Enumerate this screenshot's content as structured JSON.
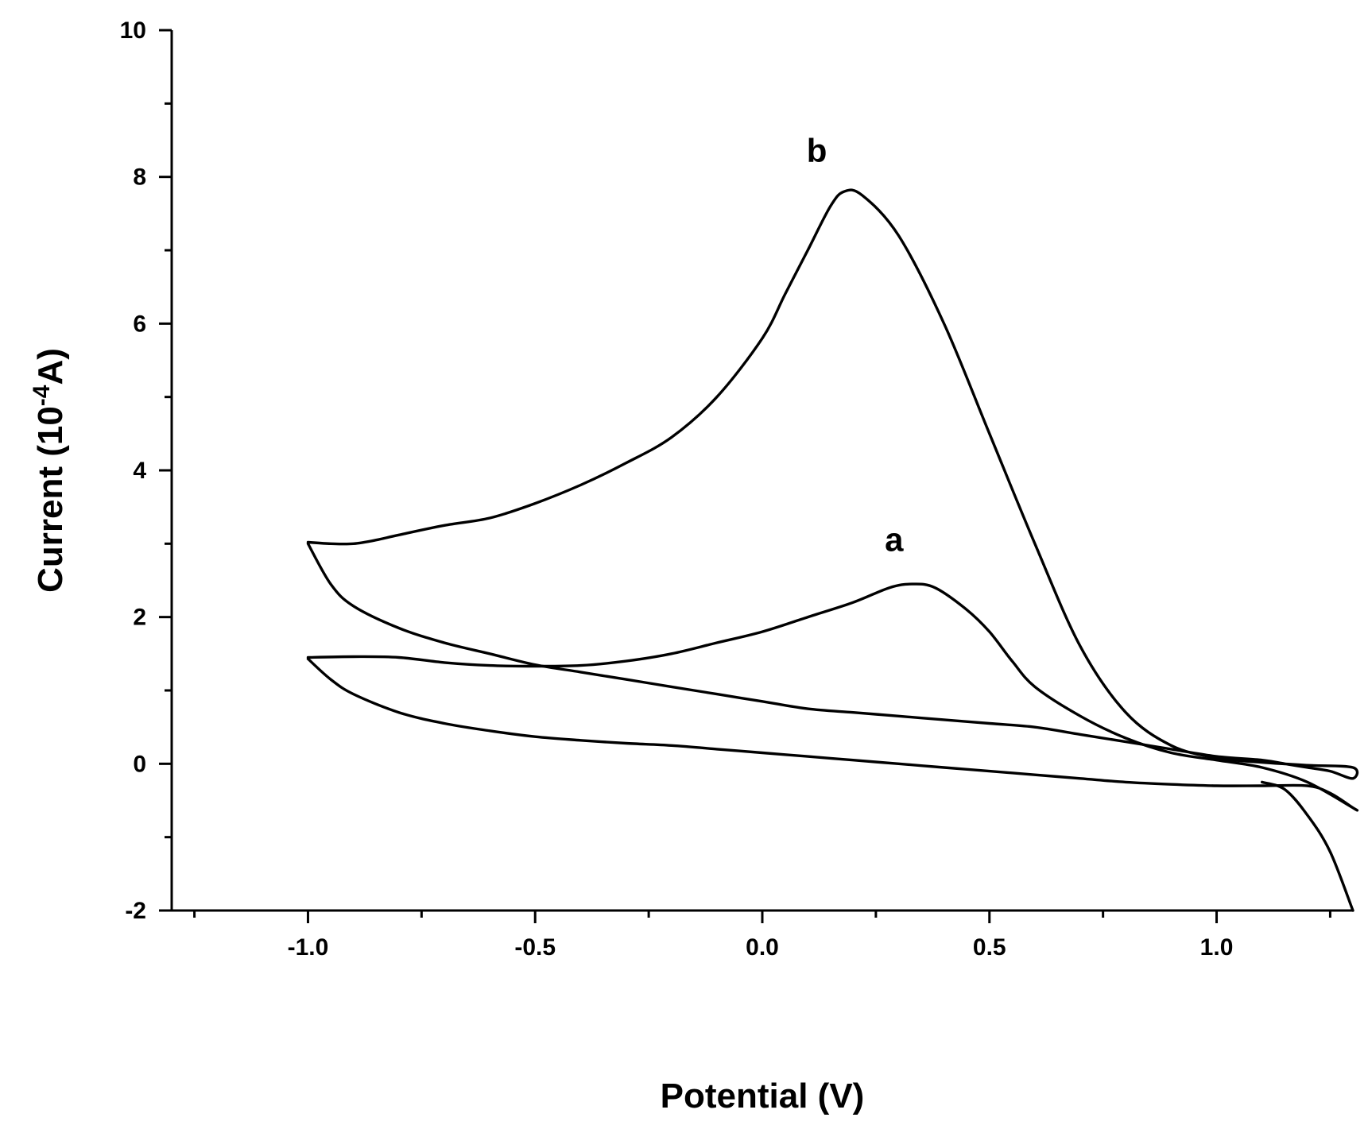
{
  "chart_data": {
    "type": "line",
    "title": "",
    "xlabel": "Potential (V)",
    "ylabel_main": "Current (10",
    "ylabel_sup": "-4",
    "ylabel_tail": "A)",
    "xlim": [
      -1.3,
      1.3
    ],
    "ylim": [
      -2,
      10
    ],
    "x_major_ticks": [
      -1.0,
      -0.5,
      0.0,
      0.5,
      1.0
    ],
    "x_tick_labels": [
      "-1.0",
      "-0.5",
      "0.0",
      "0.5",
      "1.0"
    ],
    "x_minor_ticks": [
      -1.25,
      -0.75,
      -0.25,
      0.25,
      0.75,
      1.25
    ],
    "y_major_ticks": [
      -2,
      0,
      2,
      4,
      6,
      8,
      10
    ],
    "y_tick_labels": [
      "-2",
      "0",
      "2",
      "4",
      "6",
      "8",
      "10"
    ],
    "y_minor_ticks": [
      -1,
      1,
      3,
      5,
      7,
      9
    ],
    "grid": false,
    "series": [
      {
        "name": "a",
        "label": "a",
        "label_at": [
          0.29,
          2.9
        ],
        "points": [
          [
            -1.0,
            1.45
          ],
          [
            -0.9,
            1.46
          ],
          [
            -0.8,
            1.45
          ],
          [
            -0.7,
            1.38
          ],
          [
            -0.6,
            1.34
          ],
          [
            -0.5,
            1.33
          ],
          [
            -0.4,
            1.34
          ],
          [
            -0.3,
            1.4
          ],
          [
            -0.2,
            1.5
          ],
          [
            -0.1,
            1.65
          ],
          [
            0.0,
            1.8
          ],
          [
            0.1,
            2.0
          ],
          [
            0.2,
            2.2
          ],
          [
            0.28,
            2.4
          ],
          [
            0.33,
            2.45
          ],
          [
            0.38,
            2.4
          ],
          [
            0.45,
            2.1
          ],
          [
            0.5,
            1.8
          ],
          [
            0.55,
            1.4
          ],
          [
            0.6,
            1.05
          ],
          [
            0.7,
            0.65
          ],
          [
            0.8,
            0.35
          ],
          [
            0.9,
            0.15
          ],
          [
            1.0,
            0.05
          ],
          [
            1.1,
            -0.05
          ],
          [
            1.2,
            -0.25
          ],
          [
            1.3,
            -0.6
          ],
          [
            1.3,
            -0.6
          ],
          [
            1.25,
            -0.4
          ],
          [
            1.2,
            -0.3
          ],
          [
            1.1,
            -0.3
          ],
          [
            1.0,
            -0.3
          ],
          [
            0.9,
            -0.28
          ],
          [
            0.8,
            -0.25
          ],
          [
            0.7,
            -0.2
          ],
          [
            0.6,
            -0.15
          ],
          [
            0.5,
            -0.1
          ],
          [
            0.4,
            -0.05
          ],
          [
            0.3,
            0.0
          ],
          [
            0.2,
            0.05
          ],
          [
            0.1,
            0.1
          ],
          [
            0.0,
            0.15
          ],
          [
            -0.1,
            0.2
          ],
          [
            -0.2,
            0.25
          ],
          [
            -0.3,
            0.28
          ],
          [
            -0.4,
            0.32
          ],
          [
            -0.5,
            0.37
          ],
          [
            -0.6,
            0.45
          ],
          [
            -0.7,
            0.55
          ],
          [
            -0.8,
            0.7
          ],
          [
            -0.9,
            0.95
          ],
          [
            -0.95,
            1.15
          ],
          [
            -1.0,
            1.43
          ]
        ]
      },
      {
        "name": "b",
        "label": "b",
        "label_at": [
          0.12,
          8.2
        ],
        "points": [
          [
            -1.0,
            3.02
          ],
          [
            -0.95,
            3.0
          ],
          [
            -0.9,
            3.0
          ],
          [
            -0.85,
            3.05
          ],
          [
            -0.8,
            3.12
          ],
          [
            -0.7,
            3.25
          ],
          [
            -0.6,
            3.35
          ],
          [
            -0.5,
            3.55
          ],
          [
            -0.4,
            3.8
          ],
          [
            -0.3,
            4.1
          ],
          [
            -0.2,
            4.45
          ],
          [
            -0.1,
            5.0
          ],
          [
            0.0,
            5.8
          ],
          [
            0.05,
            6.4
          ],
          [
            0.1,
            7.0
          ],
          [
            0.15,
            7.6
          ],
          [
            0.18,
            7.8
          ],
          [
            0.22,
            7.75
          ],
          [
            0.3,
            7.2
          ],
          [
            0.4,
            6.0
          ],
          [
            0.5,
            4.5
          ],
          [
            0.6,
            3.0
          ],
          [
            0.7,
            1.6
          ],
          [
            0.8,
            0.7
          ],
          [
            0.9,
            0.25
          ],
          [
            1.0,
            0.08
          ],
          [
            1.1,
            0.02
          ],
          [
            1.2,
            -0.02
          ],
          [
            1.3,
            -0.05
          ],
          [
            1.3,
            -0.2
          ],
          [
            1.25,
            -0.1
          ],
          [
            1.2,
            -0.05
          ],
          [
            1.15,
            0.0
          ],
          [
            1.1,
            0.05
          ],
          [
            1.0,
            0.1
          ],
          [
            0.9,
            0.2
          ],
          [
            0.8,
            0.3
          ],
          [
            0.7,
            0.4
          ],
          [
            0.6,
            0.5
          ],
          [
            0.5,
            0.55
          ],
          [
            0.4,
            0.6
          ],
          [
            0.3,
            0.65
          ],
          [
            0.2,
            0.7
          ],
          [
            0.1,
            0.75
          ],
          [
            0.0,
            0.85
          ],
          [
            -0.1,
            0.95
          ],
          [
            -0.2,
            1.05
          ],
          [
            -0.3,
            1.15
          ],
          [
            -0.4,
            1.25
          ],
          [
            -0.5,
            1.35
          ],
          [
            -0.6,
            1.5
          ],
          [
            -0.7,
            1.65
          ],
          [
            -0.8,
            1.85
          ],
          [
            -0.9,
            2.15
          ],
          [
            -0.95,
            2.45
          ],
          [
            -1.0,
            3.0
          ]
        ]
      },
      {
        "name": "tail",
        "label": "",
        "points": [
          [
            1.1,
            -0.25
          ],
          [
            1.15,
            -0.35
          ],
          [
            1.2,
            -0.7
          ],
          [
            1.25,
            -1.2
          ],
          [
            1.3,
            -2.0
          ]
        ]
      }
    ]
  }
}
